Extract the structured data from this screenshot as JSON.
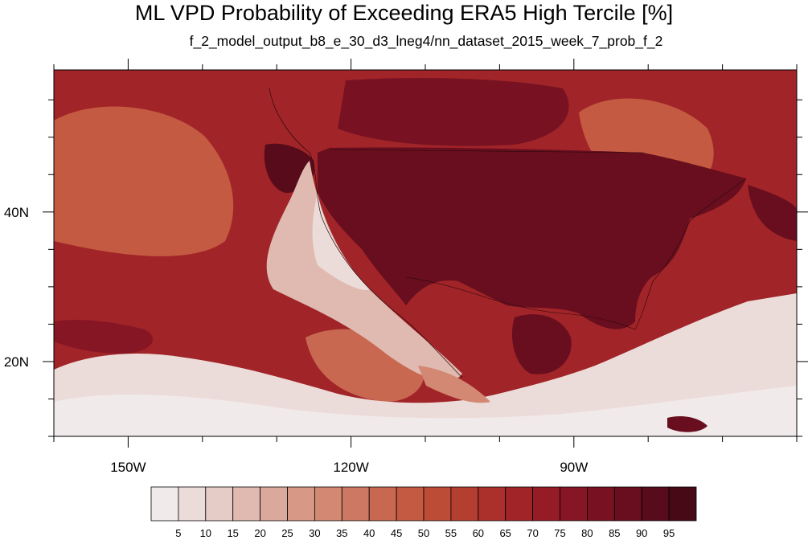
{
  "title": "ML VPD Probability of Exceeding ERA5 High Tercile [%]",
  "subtitle": "f_2_model_output_b8_e_30_d3_lneg4/nn_dataset_2015_week_7_prob_f_2",
  "map": {
    "projection": "cylindrical equidistant",
    "lon_range": [
      -160,
      -60
    ],
    "lat_range": [
      10,
      59
    ],
    "lon_ticks": [
      {
        "value": -150,
        "label": "150W"
      },
      {
        "value": -120,
        "label": "120W"
      },
      {
        "value": -90,
        "label": "90W"
      }
    ],
    "lat_ticks": [
      {
        "value": 40,
        "label": "40N"
      },
      {
        "value": 20,
        "label": "20N"
      }
    ],
    "field": "probability of exceeding ERA5 high tercile",
    "units": "%"
  },
  "colorbar": {
    "levels": [
      5,
      10,
      15,
      20,
      25,
      30,
      35,
      40,
      45,
      50,
      55,
      60,
      65,
      70,
      75,
      80,
      85,
      90,
      95
    ],
    "labels": [
      "5",
      "10",
      "15",
      "20",
      "25",
      "30",
      "35",
      "40",
      "45",
      "50",
      "55",
      "60",
      "65",
      "70",
      "75",
      "80",
      "85",
      "90",
      "95"
    ],
    "colors": [
      "#f1eaea",
      "#ecdcd9",
      "#e6ccc6",
      "#e0bab0",
      "#dba99b",
      "#d79886",
      "#d28872",
      "#cd7862",
      "#c86851",
      "#c35a41",
      "#bc4c35",
      "#b43e2f",
      "#ab2f2a",
      "#a12428",
      "#951c27",
      "#871624",
      "#781222",
      "#680e1f",
      "#580b1b",
      "#470916"
    ]
  }
}
